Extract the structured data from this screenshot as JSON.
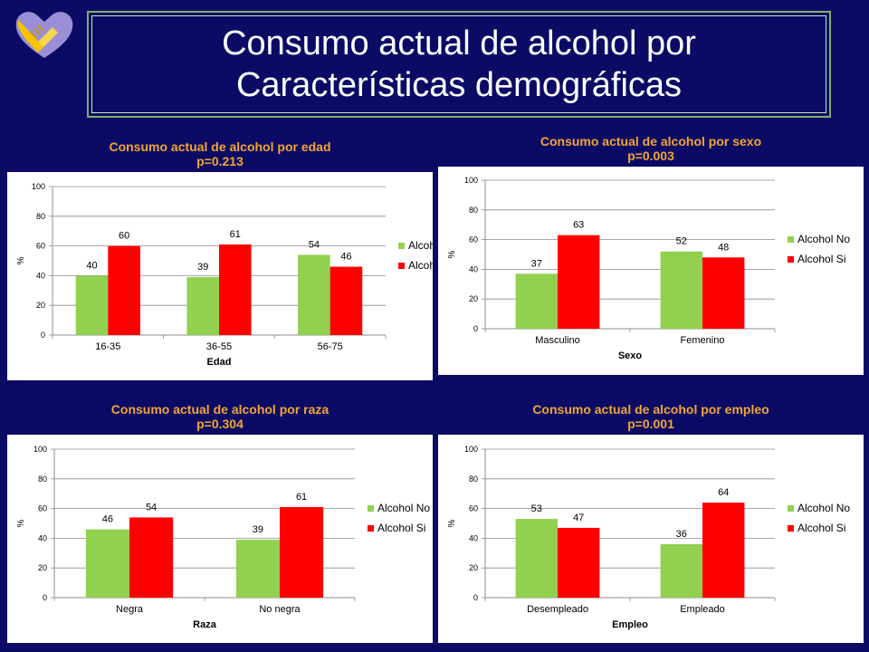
{
  "slide": {
    "title_line1": "Consumo actual de alcohol por",
    "title_line2": "Características demográficas",
    "logo_icon": "heart-hands-icon"
  },
  "colors": {
    "no": "#92d050",
    "si": "#ff0000",
    "background": "#0b0b66",
    "title_accent": "#f2a531"
  },
  "chart_data": [
    {
      "type": "bar",
      "title": "Consumo actual  de alcohol por edad",
      "subtitle": "p=0.213",
      "categories": [
        "16-35",
        "36-55",
        "56-75"
      ],
      "series": [
        {
          "name": "Alcohol No",
          "values": [
            40,
            39,
            54
          ]
        },
        {
          "name": "Alcohol Si",
          "values": [
            60,
            61,
            46
          ]
        }
      ],
      "xlabel": "Edad",
      "ylabel": "%",
      "ylim": [
        0,
        100
      ],
      "yticks": [
        0,
        20,
        40,
        60,
        80,
        100
      ],
      "grid": true,
      "legend": "right"
    },
    {
      "type": "bar",
      "title": "Consumo actual  de alcohol por sexo",
      "subtitle": "p=0.003",
      "categories": [
        "Masculino",
        "Femenino"
      ],
      "series": [
        {
          "name": "Alcohol No",
          "values": [
            37,
            52
          ]
        },
        {
          "name": "Alcohol Si",
          "values": [
            63,
            48
          ]
        }
      ],
      "xlabel": "Sexo",
      "ylabel": "%",
      "ylim": [
        0,
        100
      ],
      "yticks": [
        0,
        20,
        40,
        60,
        80,
        100
      ],
      "grid": true,
      "legend": "right"
    },
    {
      "type": "bar",
      "title": "Consumo actual  de alcohol por raza",
      "subtitle": "p=0.304",
      "categories": [
        "Negra",
        "No negra"
      ],
      "series": [
        {
          "name": "Alcohol No",
          "values": [
            46,
            39
          ]
        },
        {
          "name": "Alcohol Si",
          "values": [
            54,
            61
          ]
        }
      ],
      "xlabel": "Raza",
      "ylabel": "%",
      "ylim": [
        0,
        100
      ],
      "yticks": [
        0,
        20,
        40,
        60,
        80,
        100
      ],
      "grid": true,
      "legend": "right"
    },
    {
      "type": "bar",
      "title": "Consumo actual  de alcohol por  empleo",
      "subtitle": "p=0.001",
      "categories": [
        "Desempleado",
        "Empleado"
      ],
      "series": [
        {
          "name": "Alcohol No",
          "values": [
            53,
            36
          ]
        },
        {
          "name": "Alcohol Si",
          "values": [
            47,
            64
          ]
        }
      ],
      "xlabel": "Empleo",
      "ylabel": "%",
      "ylim": [
        0,
        100
      ],
      "yticks": [
        0,
        20,
        40,
        60,
        80,
        100
      ],
      "grid": true,
      "legend": "right"
    }
  ]
}
